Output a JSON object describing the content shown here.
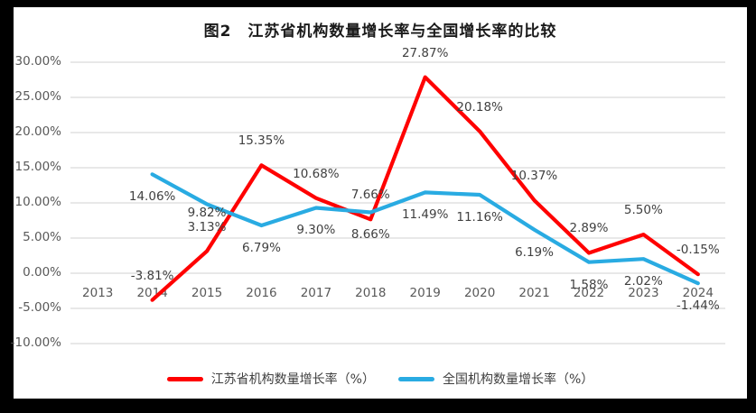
{
  "window": {
    "background_color": "#000000",
    "canvas_color": "#ffffff"
  },
  "chart_data": {
    "type": "line",
    "title": "图2　江苏省机构数量增长率与全国增长率的比较",
    "categories": [
      "2013",
      "2014",
      "2015",
      "2016",
      "2017",
      "2018",
      "2019",
      "2020",
      "2021",
      "2022",
      "2023",
      "2024"
    ],
    "series": [
      {
        "name": "江苏省机构数量增长率（%）",
        "color": "#FF0000",
        "values": [
          null,
          -3.81,
          3.13,
          15.35,
          10.68,
          7.66,
          27.87,
          20.18,
          10.37,
          2.89,
          5.5,
          -0.15
        ],
        "labels": [
          "",
          "-3.81%",
          "3.13%",
          "15.35%",
          "10.68%",
          "7.66%",
          "27.87%",
          "20.18%",
          "10.37%",
          "2.89%",
          "5.50%",
          "-0.15%"
        ],
        "label_position": "above"
      },
      {
        "name": "全国机构数量增长率（%）",
        "color": "#29ABE2",
        "values": [
          null,
          14.06,
          9.82,
          6.79,
          9.3,
          8.66,
          11.49,
          11.16,
          6.19,
          1.58,
          2.02,
          -1.44
        ],
        "labels": [
          "",
          "14.06%",
          "9.82%",
          "6.79%",
          "9.30%",
          "8.66%",
          "11.49%",
          "11.16%",
          "6.19%",
          "1.58%",
          "2.02%",
          "-1.44%"
        ],
        "label_position": "below"
      }
    ],
    "y_axis": {
      "tick_labels": [
        "30.00%",
        "25.00%",
        "20.00%",
        "15.00%",
        "10.00%",
        "5.00%",
        "0.00%",
        "-5.00%",
        "-10.00%"
      ],
      "tick_values": [
        30,
        25,
        20,
        15,
        10,
        5,
        0,
        -5,
        -10
      ],
      "min": -10,
      "max": 30,
      "step": 5
    },
    "grid": true,
    "legend_position": "bottom",
    "colors": {
      "gridline": "#DBDBDB",
      "tick_text": "#595959",
      "data_label_text": "#404040"
    },
    "label_offset_overrides": {
      "1": {
        "2": 11
      }
    }
  }
}
